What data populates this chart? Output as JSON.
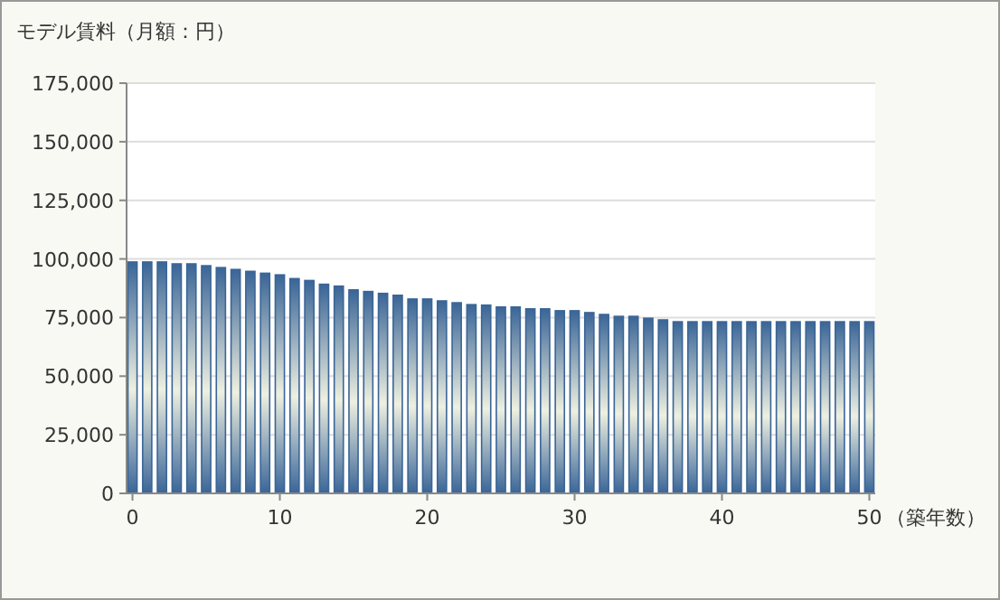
{
  "chart_data": {
    "type": "bar",
    "ylabel": "モデル賃料（月額：円）",
    "xlabel": "（築年数）",
    "x": [
      0,
      1,
      2,
      3,
      4,
      5,
      6,
      7,
      8,
      9,
      10,
      11,
      12,
      13,
      14,
      15,
      16,
      17,
      18,
      19,
      20,
      21,
      22,
      23,
      24,
      25,
      26,
      27,
      28,
      29,
      30,
      31,
      32,
      33,
      34,
      35,
      36,
      37,
      38,
      39,
      40,
      41,
      42,
      43,
      44,
      45,
      46,
      47,
      48,
      49,
      50
    ],
    "values": [
      98700,
      98700,
      98700,
      97900,
      97900,
      97100,
      96300,
      95500,
      94700,
      93900,
      93200,
      91600,
      90800,
      89200,
      88400,
      86800,
      86100,
      85300,
      84500,
      82900,
      82900,
      82100,
      81300,
      80500,
      80300,
      79500,
      79500,
      78700,
      78700,
      77900,
      77900,
      77100,
      76300,
      75500,
      75500,
      74700,
      74000,
      73200,
      73200,
      73200,
      73200,
      73200,
      73200,
      73200,
      73200,
      73200,
      73200,
      73200,
      73200,
      73200,
      73200
    ],
    "color": "#3a6597",
    "xlim": [
      -0.4,
      50.4
    ],
    "xticks": [
      0,
      10,
      20,
      30,
      40,
      50
    ],
    "ylim": [
      0,
      175000
    ],
    "yticks": [
      {
        "value": 0,
        "label": "0"
      },
      {
        "value": 25000,
        "label": "25,000"
      },
      {
        "value": 50000,
        "label": "50,000"
      },
      {
        "value": 75000,
        "label": "75,000"
      },
      {
        "value": 100000,
        "label": "100,000"
      },
      {
        "value": 125000,
        "label": "125,000"
      },
      {
        "value": 150000,
        "label": "150,000"
      },
      {
        "value": 175000,
        "label": "175,000"
      }
    ],
    "grid": "y"
  }
}
